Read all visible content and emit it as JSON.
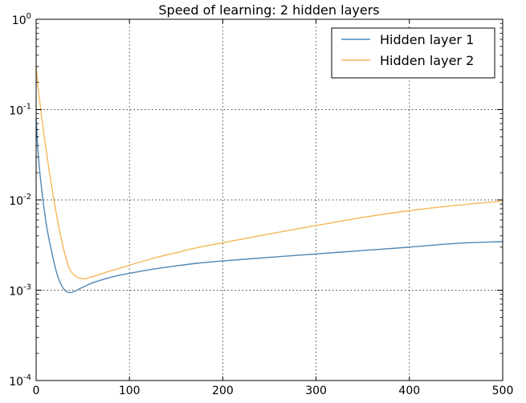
{
  "chart_data": {
    "type": "line",
    "title": "Speed of learning: 2 hidden layers",
    "xlabel": "",
    "ylabel": "",
    "x_scale": "linear",
    "y_scale": "log",
    "xlim": [
      0,
      500
    ],
    "ylim": [
      0.0001,
      1
    ],
    "grid": true,
    "legend_position": "top-right",
    "x_ticks": [
      {
        "value": 0,
        "label": "0"
      },
      {
        "value": 100,
        "label": "100"
      },
      {
        "value": 200,
        "label": "200"
      },
      {
        "value": 300,
        "label": "300"
      },
      {
        "value": 400,
        "label": "400"
      },
      {
        "value": 500,
        "label": "500"
      }
    ],
    "y_ticks": [
      {
        "value": 1,
        "base": "10",
        "exp": "0"
      },
      {
        "value": 0.1,
        "base": "10",
        "exp": "-1"
      },
      {
        "value": 0.01,
        "base": "10",
        "exp": "-2"
      },
      {
        "value": 0.001,
        "base": "10",
        "exp": "-3"
      },
      {
        "value": 0.0001,
        "base": "10",
        "exp": "-4"
      }
    ],
    "series": [
      {
        "name": "Hidden layer 1",
        "color": "#4f87b5",
        "x": [
          0,
          2,
          4,
          6,
          8,
          10,
          12,
          15,
          18,
          21,
          24,
          27,
          30,
          33,
          36,
          39,
          42,
          46,
          50,
          55,
          60,
          70,
          80,
          90,
          100,
          125,
          150,
          175,
          200,
          250,
          300,
          350,
          400,
          450,
          500
        ],
        "y": [
          0.08,
          0.035,
          0.02,
          0.013,
          0.0088,
          0.0062,
          0.0046,
          0.0032,
          0.0023,
          0.0017,
          0.00135,
          0.00114,
          0.00102,
          0.00096,
          0.00094,
          0.00095,
          0.00098,
          0.00103,
          0.00108,
          0.00114,
          0.0012,
          0.0013,
          0.00139,
          0.00147,
          0.00154,
          0.00171,
          0.00186,
          0.002,
          0.00211,
          0.00231,
          0.00252,
          0.00275,
          0.003,
          0.0033,
          0.00345
        ]
      },
      {
        "name": "Hidden layer 2",
        "color": "#f5b759",
        "x": [
          0,
          2,
          4,
          6,
          8,
          10,
          12,
          15,
          18,
          21,
          24,
          27,
          30,
          33,
          36,
          40,
          44,
          48,
          52,
          56,
          60,
          70,
          80,
          90,
          100,
          125,
          150,
          175,
          200,
          250,
          300,
          350,
          400,
          450,
          500
        ],
        "y": [
          0.3,
          0.18,
          0.12,
          0.082,
          0.057,
          0.04,
          0.029,
          0.018,
          0.0115,
          0.0076,
          0.0052,
          0.0037,
          0.0027,
          0.0021,
          0.0017,
          0.0015,
          0.00139,
          0.00135,
          0.00134,
          0.00137,
          0.00141,
          0.00152,
          0.00164,
          0.00176,
          0.00189,
          0.00225,
          0.0026,
          0.003,
          0.00335,
          0.0042,
          0.0052,
          0.0064,
          0.0076,
          0.0087,
          0.0097
        ]
      }
    ]
  }
}
